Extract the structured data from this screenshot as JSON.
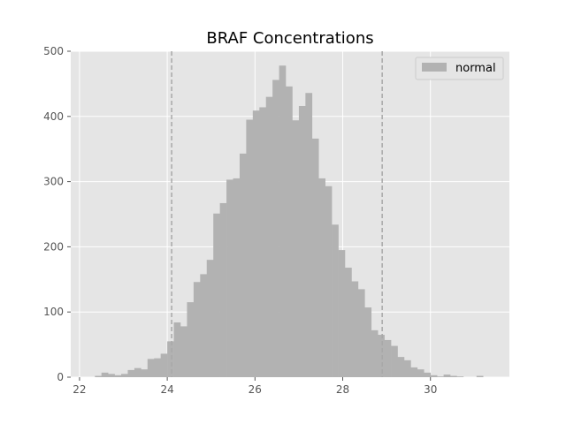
{
  "chart_data": {
    "type": "bar",
    "title": "BRAF Concentrations",
    "xlabel": "",
    "ylabel": "",
    "xlim": [
      21.8,
      31.8
    ],
    "ylim": [
      0,
      500
    ],
    "xticks": [
      22,
      24,
      26,
      28,
      30
    ],
    "yticks": [
      0,
      100,
      200,
      300,
      400,
      500
    ],
    "grid": true,
    "legend_position": "top-right",
    "colors": {
      "plot_background": "#e5e5e5",
      "grid": "#ffffff",
      "bar": "#b2b2b2",
      "reference_line": "#a8a8a8"
    },
    "series": [
      {
        "name": "normal",
        "bin_width": 0.15,
        "bin_start": [
          22.35,
          22.5,
          22.65,
          22.8,
          22.95,
          23.1,
          23.25,
          23.4,
          23.55,
          23.7,
          23.85,
          24.0,
          24.15,
          24.3,
          24.45,
          24.6,
          24.75,
          24.9,
          25.05,
          25.2,
          25.35,
          25.5,
          25.65,
          25.8,
          25.95,
          26.1,
          26.25,
          26.4,
          26.55,
          26.7,
          26.85,
          27.0,
          27.15,
          27.3,
          27.45,
          27.6,
          27.75,
          27.9,
          28.05,
          28.2,
          28.35,
          28.5,
          28.65,
          28.8,
          28.95,
          29.1,
          29.25,
          29.4,
          29.55,
          29.7,
          29.85,
          30.0,
          30.15,
          30.3,
          30.45,
          30.6,
          30.75,
          30.9,
          31.05
        ],
        "counts": [
          2,
          7,
          5,
          3,
          5,
          11,
          14,
          12,
          28,
          29,
          36,
          55,
          84,
          78,
          115,
          146,
          158,
          180,
          251,
          267,
          303,
          305,
          343,
          395,
          409,
          414,
          430,
          456,
          478,
          446,
          394,
          416,
          436,
          366,
          305,
          293,
          234,
          195,
          168,
          147,
          135,
          107,
          72,
          65,
          57,
          48,
          31,
          26,
          15,
          12,
          7,
          3,
          1,
          4,
          2,
          1,
          0,
          0,
          2
        ]
      }
    ],
    "reference_lines_x": [
      24.1,
      28.9
    ]
  }
}
